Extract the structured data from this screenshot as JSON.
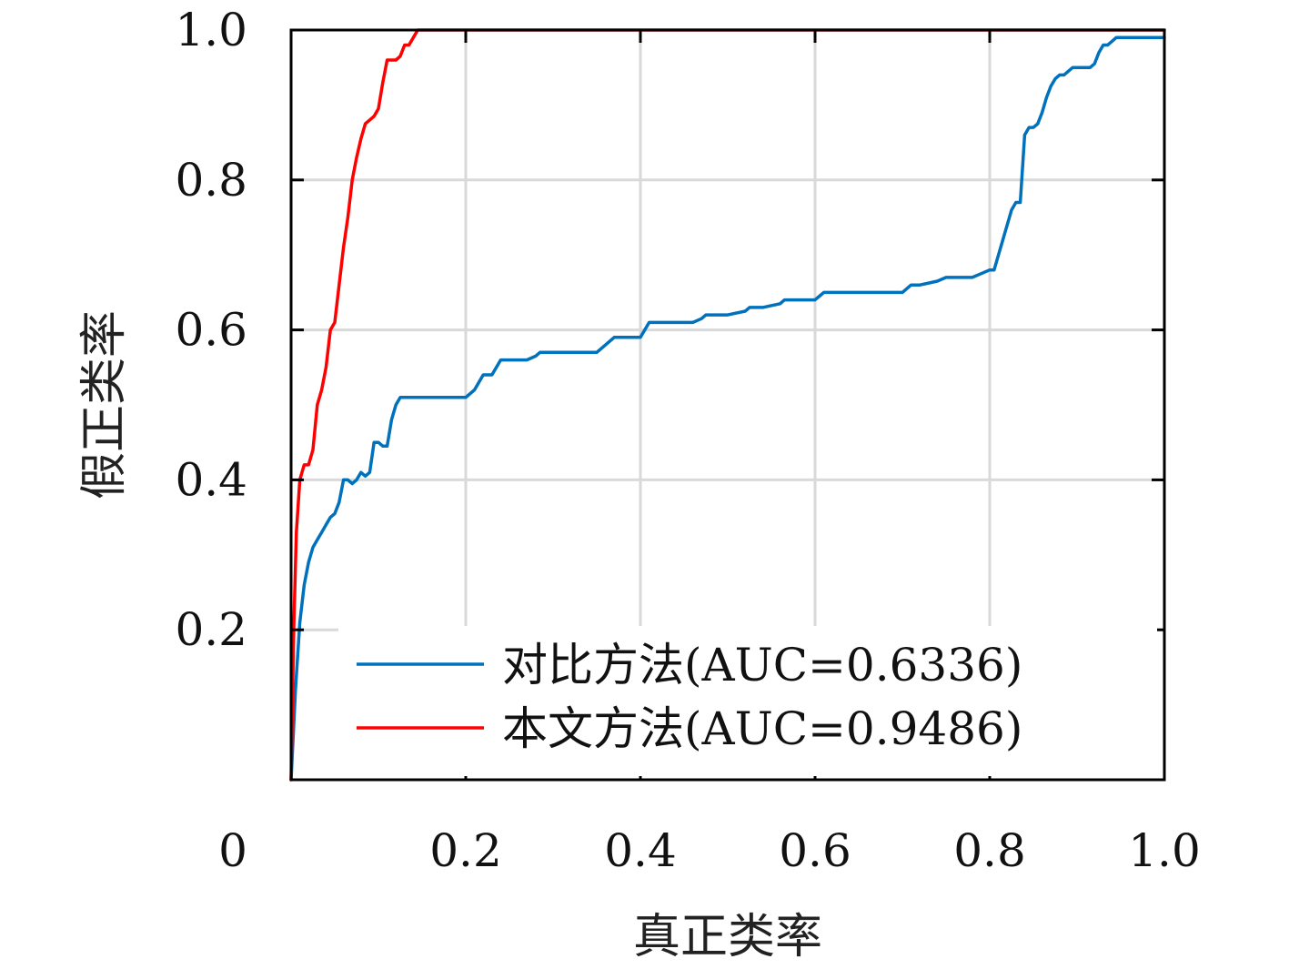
{
  "chart_data": {
    "type": "line",
    "xlabel": "真正类率",
    "ylabel": "假正类率",
    "xlim": [
      0,
      1.0
    ],
    "ylim": [
      0,
      1.0
    ],
    "xticks": [
      0,
      0.2,
      0.4,
      0.6,
      0.8,
      1.0
    ],
    "xtick_labels": [
      "0",
      "0.2",
      "0.4",
      "0.6",
      "0.8",
      "1.0"
    ],
    "yticks": [
      0.2,
      0.4,
      0.6,
      0.8,
      1.0
    ],
    "ytick_labels": [
      "0.2",
      "0.4",
      "0.6",
      "0.8",
      "1.0"
    ],
    "grid": true,
    "legend_position": "bottom-right",
    "series": [
      {
        "name": "对比方法(AUC=0.6336)",
        "color": "#0072BD",
        "x": [
          0,
          0.005,
          0.01,
          0.015,
          0.02,
          0.025,
          0.03,
          0.035,
          0.04,
          0.045,
          0.05,
          0.055,
          0.06,
          0.065,
          0.07,
          0.075,
          0.08,
          0.085,
          0.09,
          0.095,
          0.1,
          0.105,
          0.11,
          0.115,
          0.12,
          0.125,
          0.13,
          0.135,
          0.14,
          0.145,
          0.15,
          0.155,
          0.16,
          0.17,
          0.18,
          0.19,
          0.2,
          0.21,
          0.215,
          0.22,
          0.225,
          0.23,
          0.24,
          0.25,
          0.255,
          0.26,
          0.27,
          0.28,
          0.285,
          0.29,
          0.3,
          0.32,
          0.34,
          0.35,
          0.36,
          0.37,
          0.375,
          0.38,
          0.39,
          0.4,
          0.405,
          0.41,
          0.42,
          0.44,
          0.46,
          0.47,
          0.475,
          0.48,
          0.5,
          0.52,
          0.525,
          0.53,
          0.54,
          0.56,
          0.565,
          0.57,
          0.58,
          0.6,
          0.605,
          0.61,
          0.62,
          0.64,
          0.66,
          0.68,
          0.7,
          0.71,
          0.72,
          0.74,
          0.75,
          0.76,
          0.78,
          0.79,
          0.8,
          0.805,
          0.81,
          0.815,
          0.82,
          0.825,
          0.83,
          0.835,
          0.84,
          0.845,
          0.85,
          0.855,
          0.86,
          0.865,
          0.87,
          0.875,
          0.88,
          0.885,
          0.89,
          0.895,
          0.9,
          0.905,
          0.91,
          0.915,
          0.92,
          0.925,
          0.93,
          0.935,
          0.94,
          0.945,
          0.95,
          0.955,
          0.96,
          0.97,
          0.98,
          0.99,
          1.0
        ],
        "y": [
          0,
          0.12,
          0.21,
          0.26,
          0.29,
          0.31,
          0.32,
          0.33,
          0.34,
          0.35,
          0.355,
          0.37,
          0.4,
          0.4,
          0.395,
          0.4,
          0.41,
          0.405,
          0.41,
          0.45,
          0.45,
          0.445,
          0.445,
          0.48,
          0.5,
          0.51,
          0.51,
          0.51,
          0.51,
          0.51,
          0.51,
          0.51,
          0.51,
          0.51,
          0.51,
          0.51,
          0.51,
          0.52,
          0.53,
          0.54,
          0.54,
          0.54,
          0.56,
          0.56,
          0.56,
          0.56,
          0.56,
          0.565,
          0.57,
          0.57,
          0.57,
          0.57,
          0.57,
          0.57,
          0.58,
          0.59,
          0.59,
          0.59,
          0.59,
          0.59,
          0.6,
          0.61,
          0.61,
          0.61,
          0.61,
          0.615,
          0.62,
          0.62,
          0.62,
          0.625,
          0.63,
          0.63,
          0.63,
          0.635,
          0.64,
          0.64,
          0.64,
          0.64,
          0.645,
          0.65,
          0.65,
          0.65,
          0.65,
          0.65,
          0.65,
          0.66,
          0.66,
          0.665,
          0.67,
          0.67,
          0.67,
          0.675,
          0.68,
          0.68,
          0.7,
          0.72,
          0.74,
          0.76,
          0.77,
          0.77,
          0.86,
          0.87,
          0.87,
          0.875,
          0.89,
          0.91,
          0.925,
          0.935,
          0.94,
          0.94,
          0.945,
          0.95,
          0.95,
          0.95,
          0.95,
          0.95,
          0.955,
          0.97,
          0.98,
          0.98,
          0.985,
          0.99,
          0.99,
          0.99,
          0.99,
          0.99,
          0.99,
          0.99,
          0.99
        ]
      },
      {
        "name": "本文方法(AUC=0.9486)",
        "color": "#FF0000",
        "x": [
          0,
          0.003,
          0.006,
          0.01,
          0.015,
          0.02,
          0.025,
          0.03,
          0.035,
          0.04,
          0.045,
          0.05,
          0.055,
          0.06,
          0.065,
          0.07,
          0.075,
          0.08,
          0.085,
          0.09,
          0.095,
          0.1,
          0.105,
          0.11,
          0.115,
          0.12,
          0.125,
          0.13,
          0.135,
          0.14,
          0.145,
          0.15,
          0.155,
          0.16,
          0.165,
          0.17,
          0.175,
          0.18,
          0.185,
          0.19,
          0.195,
          0.2,
          0.205,
          0.21,
          0.22,
          0.25,
          0.3,
          0.4,
          0.5,
          0.6,
          0.7,
          0.8,
          0.9,
          1.0
        ],
        "y": [
          0,
          0.2,
          0.33,
          0.4,
          0.42,
          0.42,
          0.44,
          0.5,
          0.52,
          0.55,
          0.6,
          0.61,
          0.66,
          0.71,
          0.75,
          0.8,
          0.83,
          0.855,
          0.875,
          0.88,
          0.885,
          0.895,
          0.93,
          0.96,
          0.96,
          0.96,
          0.965,
          0.98,
          0.98,
          0.99,
          1.0,
          1.0,
          1.0,
          1.0,
          1.0,
          1.0,
          1.0,
          1.0,
          1.0,
          1.0,
          1.0,
          1.0,
          1.0,
          1.0,
          1.0,
          1.0,
          1.0,
          1.0,
          1.0,
          1.0,
          1.0,
          1.0,
          1.0,
          1.0
        ]
      }
    ]
  }
}
